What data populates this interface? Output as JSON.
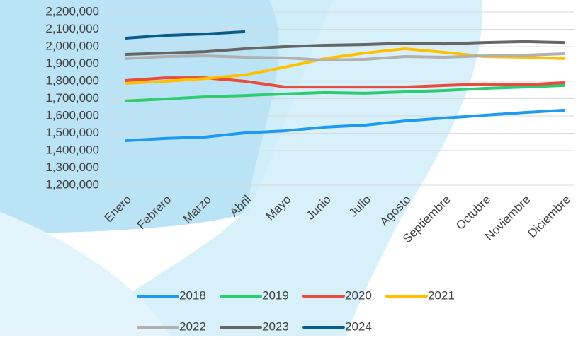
{
  "chart_data": {
    "type": "line",
    "categories": [
      "Enero",
      "Febrero",
      "Marzo",
      "Abril",
      "Mayo",
      "Junio",
      "Julio",
      "Agosto",
      "Septiembre",
      "Octubre",
      "Noviembre",
      "Diciembre"
    ],
    "series": [
      {
        "name": "2018",
        "color": "#1e9bf0",
        "values": [
          1457000,
          1470000,
          1478000,
          1502000,
          1514000,
          1535000,
          1547000,
          1571000,
          1588000,
          1604000,
          1620000,
          1633000
        ]
      },
      {
        "name": "2019",
        "color": "#2ecc71",
        "values": [
          1686000,
          1698000,
          1710000,
          1718000,
          1727000,
          1735000,
          1731000,
          1739000,
          1747000,
          1759000,
          1767000,
          1776000
        ]
      },
      {
        "name": "2020",
        "color": "#e74c3c",
        "values": [
          1804000,
          1820000,
          1820000,
          1800000,
          1767000,
          1767000,
          1767000,
          1767000,
          1776000,
          1784000,
          1780000,
          1792000
        ]
      },
      {
        "name": "2021",
        "color": "#ffc000",
        "values": [
          1788000,
          1800000,
          1816000,
          1837000,
          1882000,
          1931000,
          1963000,
          1988000,
          1967000,
          1943000,
          1939000,
          1931000
        ]
      },
      {
        "name": "2022",
        "color": "#b0b0b0",
        "values": [
          1931000,
          1943000,
          1947000,
          1939000,
          1935000,
          1922000,
          1927000,
          1943000,
          1939000,
          1947000,
          1951000,
          1959000
        ]
      },
      {
        "name": "2023",
        "color": "#666666",
        "values": [
          1955000,
          1963000,
          1971000,
          1988000,
          2000000,
          2008000,
          2012000,
          2020000,
          2016000,
          2024000,
          2029000,
          2024000
        ]
      },
      {
        "name": "2024",
        "color": "#0b5a8c",
        "values": [
          2049000,
          2065000,
          2073000,
          2086000,
          null,
          null,
          null,
          null,
          null,
          null,
          null,
          null
        ]
      }
    ],
    "ylim": [
      1200000,
      2200000
    ],
    "yticks": [
      {
        "value": 1200000,
        "label": "1,200,000"
      },
      {
        "value": 1300000,
        "label": "1,300,000"
      },
      {
        "value": 1400000,
        "label": "1,400,000"
      },
      {
        "value": 1500000,
        "label": "1,500,000"
      },
      {
        "value": 1600000,
        "label": "1,600,000"
      },
      {
        "value": 1700000,
        "label": "1,700,000"
      },
      {
        "value": 1800000,
        "label": "1,800,000"
      },
      {
        "value": 1900000,
        "label": "1,900,000"
      },
      {
        "value": 2000000,
        "label": "2,000,000"
      },
      {
        "value": 2100000,
        "label": "2,100,000"
      },
      {
        "value": 2200000,
        "label": "2,200,000"
      }
    ],
    "grid": true,
    "legend": "bottom"
  }
}
